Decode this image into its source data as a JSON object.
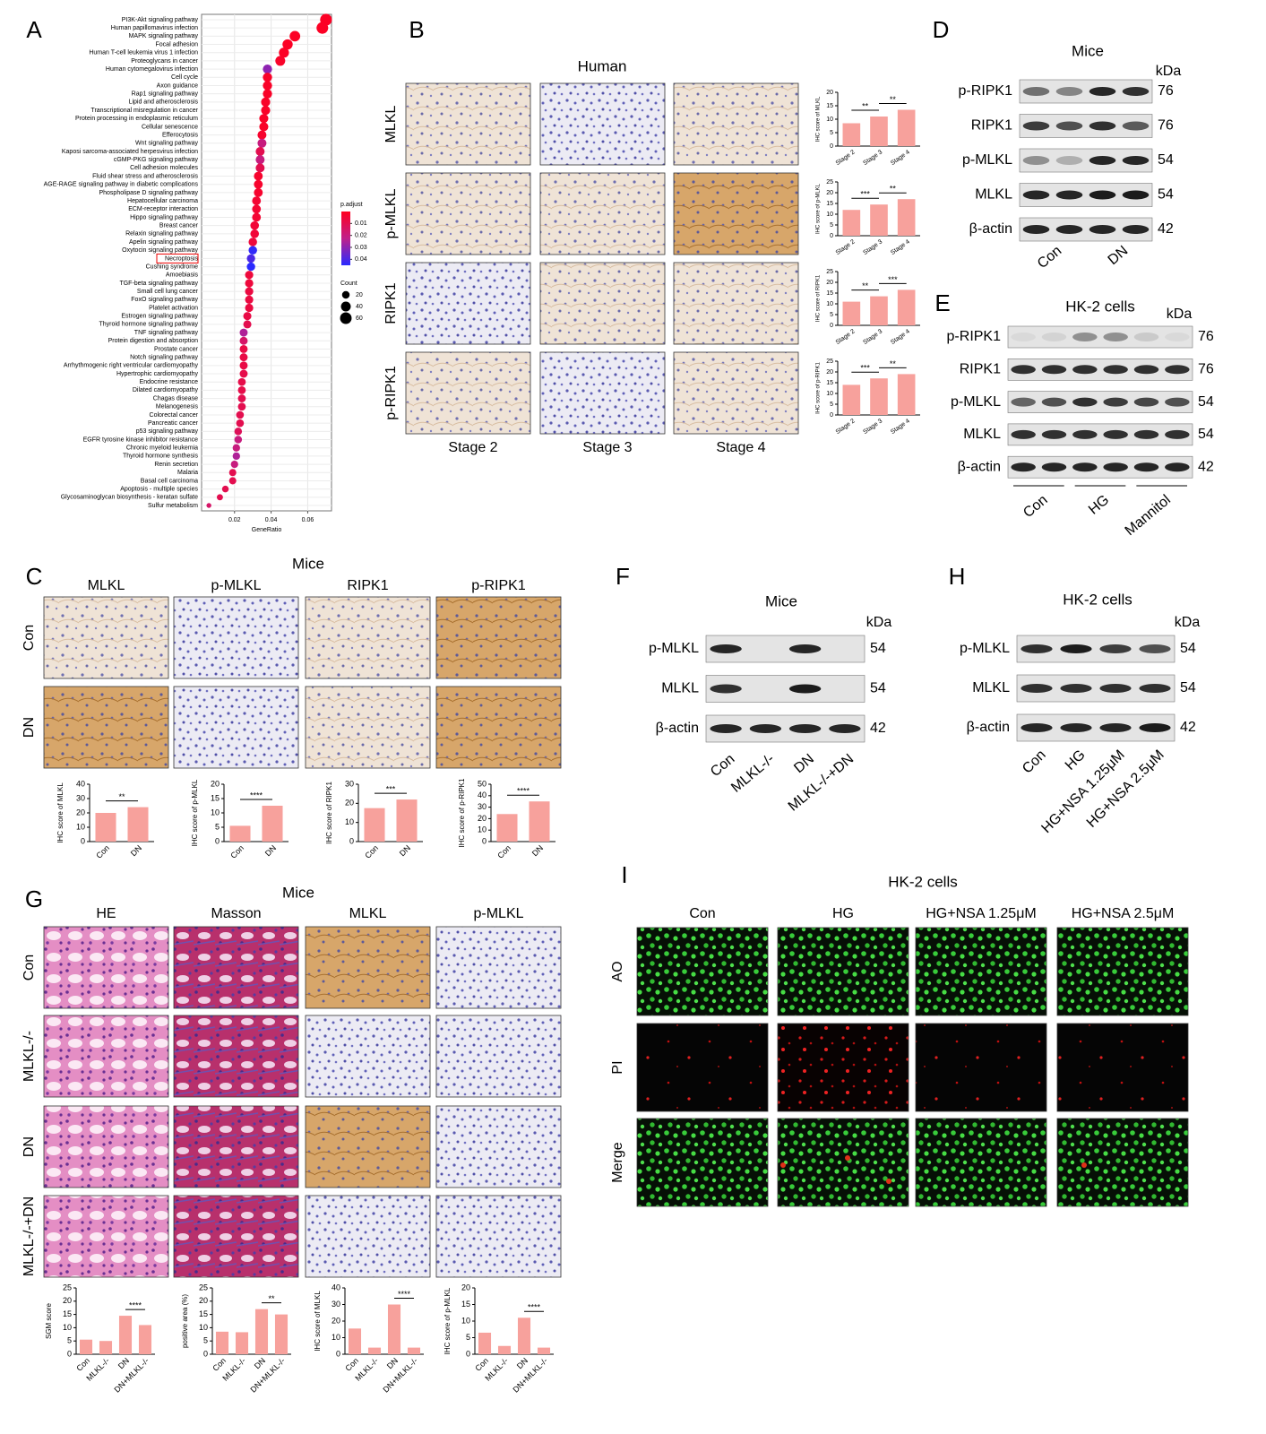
{
  "panel_labels": [
    "A",
    "B",
    "C",
    "D",
    "E",
    "F",
    "G",
    "H",
    "I"
  ],
  "chart_data": [
    {
      "type": "dot",
      "x_label": "GeneRatio",
      "categories": [
        "PI3K-Akt signaling pathway",
        "Human papillomavirus infection",
        "MAPK signaling pathway",
        "Focal adhesion",
        "Human T-cell leukemia virus 1 infection",
        "Proteoglycans in cancer",
        "Human cytomegalovirus infection",
        "Cell cycle",
        "Axon guidance",
        "Rap1 signaling pathway",
        "Lipid and atherosclerosis",
        "Transcriptional misregulation in cancer",
        "Protein processing in endoplasmic reticulum",
        "Cellular senescence",
        "Efferocytosis",
        "Wnt signaling pathway",
        "Kaposi sarcoma-associated herpesvirus infection",
        "cGMP-PKG signaling pathway",
        "Cell adhesion molecules",
        "Fluid shear stress and atherosclerosis",
        "AGE-RAGE signaling pathway in diabetic complications",
        "Phospholipase D signaling pathway",
        "Hepatocellular carcinoma",
        "ECM-receptor interaction",
        "Hippo signaling pathway",
        "Breast cancer",
        "Relaxin signaling pathway",
        "Apelin signaling pathway",
        "Oxytocin signaling pathway",
        "Necroptosis",
        "Cushing syndrome",
        "Amoebiasis",
        "TGF-beta signaling pathway",
        "Small cell lung cancer",
        "FoxO signaling pathway",
        "Platelet activation",
        "Estrogen signaling pathway",
        "Thyroid hormone signaling pathway",
        "TNF signaling pathway",
        "Protein digestion and absorption",
        "Prostate cancer",
        "Notch signaling pathway",
        "Arrhythmogenic right ventricular cardiomyopathy",
        "Hypertrophic cardiomyopathy",
        "Endocrine resistance",
        "Dilated cardiomyopathy",
        "Chagas disease",
        "Melanogenesis",
        "Colorectal cancer",
        "Pancreatic cancer",
        "p53 signaling pathway",
        "EGFR tyrosine kinase inhibitor resistance",
        "Chronic myeloid leukemia",
        "Thyroid hormone synthesis",
        "Renin secretion",
        "Malaria",
        "Basal cell carcinoma",
        "Apoptosis - multiple species",
        "Glycosaminoglycan biosynthesis - keratan sulfate",
        "Sulfur metabolism"
      ],
      "values": [
        0.07,
        0.068,
        0.053,
        0.049,
        0.047,
        0.045,
        0.038,
        0.038,
        0.038,
        0.038,
        0.037,
        0.037,
        0.036,
        0.036,
        0.035,
        0.035,
        0.034,
        0.034,
        0.034,
        0.033,
        0.033,
        0.033,
        0.032,
        0.032,
        0.032,
        0.031,
        0.031,
        0.03,
        0.03,
        0.029,
        0.029,
        0.028,
        0.028,
        0.028,
        0.028,
        0.028,
        0.027,
        0.027,
        0.025,
        0.025,
        0.025,
        0.025,
        0.025,
        0.025,
        0.024,
        0.024,
        0.024,
        0.024,
        0.023,
        0.023,
        0.022,
        0.022,
        0.021,
        0.021,
        0.02,
        0.019,
        0.019,
        0.015,
        0.012,
        0.006
      ],
      "counts": [
        63,
        61,
        48,
        44,
        42,
        40,
        34,
        34,
        34,
        34,
        33,
        33,
        32,
        32,
        31,
        31,
        31,
        31,
        31,
        30,
        30,
        30,
        29,
        29,
        29,
        28,
        28,
        27,
        27,
        26,
        26,
        25,
        25,
        25,
        25,
        25,
        24,
        24,
        23,
        23,
        23,
        23,
        23,
        23,
        22,
        22,
        22,
        22,
        21,
        21,
        20,
        20,
        19,
        19,
        18,
        17,
        17,
        14,
        11,
        5
      ],
      "p_adjust": [
        0.001,
        0.001,
        0.001,
        0.001,
        0.001,
        0.002,
        0.03,
        0.002,
        0.002,
        0.002,
        0.002,
        0.002,
        0.002,
        0.002,
        0.003,
        0.02,
        0.01,
        0.02,
        0.01,
        0.003,
        0.003,
        0.003,
        0.004,
        0.004,
        0.004,
        0.005,
        0.005,
        0.006,
        0.044,
        0.04,
        0.045,
        0.006,
        0.006,
        0.007,
        0.007,
        0.007,
        0.008,
        0.01,
        0.025,
        0.015,
        0.008,
        0.008,
        0.008,
        0.009,
        0.009,
        0.009,
        0.01,
        0.01,
        0.01,
        0.01,
        0.012,
        0.02,
        0.02,
        0.025,
        0.02,
        0.01,
        0.01,
        0.01,
        0.01,
        0.015
      ],
      "xlim": [
        0.002,
        0.073
      ],
      "xticks": [
        0.02,
        0.04,
        0.06
      ],
      "color_label": "p.adjust",
      "color_lim": [
        0,
        0.045
      ],
      "color_ticks": [
        0.01,
        0.02,
        0.03,
        0.04
      ],
      "size_label": "Count",
      "size_ticks": [
        20,
        40,
        60
      ],
      "highlight": 29,
      "grid": true
    },
    {
      "type": "bar",
      "y_label": "IHC score of MLKL",
      "categories": [
        "Stage 2",
        "Stage 3",
        "Stage 4"
      ],
      "values": [
        8.5,
        11,
        13.5
      ],
      "color": "#f7a19c",
      "ylim": [
        0,
        20
      ],
      "yticks": [
        0,
        5,
        10,
        15,
        20
      ],
      "significance": [
        {
          "pair": [
            0,
            1
          ],
          "label": "**"
        },
        {
          "pair": [
            1,
            2
          ],
          "label": "**"
        }
      ]
    },
    {
      "type": "bar",
      "y_label": "IHC score of p-MLKL",
      "categories": [
        "Stage 2",
        "Stage 3",
        "Stage 4"
      ],
      "values": [
        12,
        14.5,
        17
      ],
      "color": "#f7a19c",
      "ylim": [
        0,
        25
      ],
      "yticks": [
        0,
        5,
        10,
        15,
        20,
        25
      ],
      "significance": [
        {
          "pair": [
            0,
            1
          ],
          "label": "***"
        },
        {
          "pair": [
            1,
            2
          ],
          "label": "**"
        }
      ]
    },
    {
      "type": "bar",
      "y_label": "IHC score of RIPK1",
      "categories": [
        "Stage 2",
        "Stage 3",
        "Stage 4"
      ],
      "values": [
        11,
        13.5,
        16.5
      ],
      "color": "#f7a19c",
      "ylim": [
        0,
        25
      ],
      "yticks": [
        0,
        5,
        10,
        15,
        20,
        25
      ],
      "significance": [
        {
          "pair": [
            0,
            1
          ],
          "label": "**"
        },
        {
          "pair": [
            1,
            2
          ],
          "label": "***"
        }
      ]
    },
    {
      "type": "bar",
      "y_label": "IHC score of p-RIPK1",
      "categories": [
        "Stage 2",
        "Stage 3",
        "Stage 4"
      ],
      "values": [
        14,
        17,
        19
      ],
      "color": "#f7a19c",
      "ylim": [
        0,
        25
      ],
      "yticks": [
        0,
        5,
        10,
        15,
        20,
        25
      ],
      "significance": [
        {
          "pair": [
            0,
            1
          ],
          "label": "***"
        },
        {
          "pair": [
            1,
            2
          ],
          "label": "**"
        }
      ]
    },
    {
      "type": "bar",
      "y_label": "IHC score of MLKL",
      "categories": [
        "Con",
        "DN"
      ],
      "values": [
        20,
        24
      ],
      "color": "#f7a19c",
      "ylim": [
        0,
        40
      ],
      "yticks": [
        0,
        10,
        20,
        30,
        40
      ],
      "significance": [
        {
          "pair": [
            0,
            1
          ],
          "label": "**"
        }
      ]
    },
    {
      "type": "bar",
      "y_label": "IHC score of p-MLKL",
      "categories": [
        "Con",
        "DN"
      ],
      "values": [
        5.5,
        12.5
      ],
      "color": "#f7a19c",
      "ylim": [
        0,
        20
      ],
      "yticks": [
        0,
        5,
        10,
        15,
        20
      ],
      "significance": [
        {
          "pair": [
            0,
            1
          ],
          "label": "****"
        }
      ]
    },
    {
      "type": "bar",
      "y_label": "IHC score of RIPK1",
      "categories": [
        "Con",
        "DN"
      ],
      "values": [
        17.5,
        22
      ],
      "color": "#f7a19c",
      "ylim": [
        0,
        30
      ],
      "yticks": [
        0,
        10,
        20,
        30
      ],
      "significance": [
        {
          "pair": [
            0,
            1
          ],
          "label": "***"
        }
      ]
    },
    {
      "type": "bar",
      "y_label": "IHC score of p-RIPK1",
      "categories": [
        "Con",
        "DN"
      ],
      "values": [
        24,
        35
      ],
      "color": "#f7a19c",
      "ylim": [
        0,
        50
      ],
      "yticks": [
        0,
        10,
        20,
        30,
        40,
        50
      ],
      "significance": [
        {
          "pair": [
            0,
            1
          ],
          "label": "****"
        }
      ]
    },
    {
      "type": "bar",
      "y_label": "SGM score",
      "categories": [
        "Con",
        "MLKL-/-",
        "DN",
        "DN+MLKL-/-"
      ],
      "values": [
        5.5,
        5,
        14.5,
        11
      ],
      "color": "#f7a19c",
      "ylim": [
        0,
        25
      ],
      "yticks": [
        0,
        5,
        10,
        15,
        20,
        25
      ],
      "significance": [
        {
          "pair": [
            2,
            3
          ],
          "label": "****"
        }
      ]
    },
    {
      "type": "bar",
      "y_label": "positive area (%)",
      "categories": [
        "Con",
        "MLKL-/-",
        "DN",
        "DN+MLKL-/-"
      ],
      "values": [
        8.5,
        8.3,
        17,
        15
      ],
      "color": "#f7a19c",
      "ylim": [
        0,
        25
      ],
      "yticks": [
        0,
        5,
        10,
        15,
        20,
        25
      ],
      "significance": [
        {
          "pair": [
            2,
            3
          ],
          "label": "**"
        }
      ]
    },
    {
      "type": "bar",
      "y_label": "IHC score of MLKL",
      "categories": [
        "Con",
        "MLKL-/-",
        "DN",
        "DN+MLKL-/-"
      ],
      "values": [
        15.5,
        4,
        30,
        4
      ],
      "color": "#f7a19c",
      "ylim": [
        0,
        40
      ],
      "yticks": [
        0,
        10,
        20,
        30,
        40
      ],
      "significance": [
        {
          "pair": [
            2,
            3
          ],
          "label": "****"
        }
      ]
    },
    {
      "type": "bar",
      "y_label": "IHC score of p-MLKL",
      "categories": [
        "Con",
        "MLKL-/-",
        "DN",
        "DN+MLKL-/-"
      ],
      "values": [
        6.5,
        2.5,
        11,
        2
      ],
      "color": "#f7a19c",
      "ylim": [
        0,
        20
      ],
      "yticks": [
        0,
        5,
        10,
        15,
        20
      ],
      "significance": [
        {
          "pair": [
            2,
            3
          ],
          "label": "****"
        }
      ]
    }
  ],
  "panel_b": {
    "title": "Human",
    "rows": [
      "MLKL",
      "p-MLKL",
      "RIPK1",
      "p-RIPK1"
    ],
    "columns": [
      "Stage 2",
      "Stage 3",
      "Stage 4"
    ]
  },
  "panel_c": {
    "title": "Mice",
    "columns": [
      "MLKL",
      "p-MLKL",
      "RIPK1",
      "p-RIPK1"
    ],
    "rows": [
      "Con",
      "DN"
    ]
  },
  "panel_d": {
    "title": "Mice",
    "unit": "kDa",
    "proteins": [
      "p-RIPK1",
      "RIPK1",
      "p-MLKL",
      "MLKL",
      "β-actin"
    ],
    "kda": [
      76,
      76,
      54,
      54,
      42
    ],
    "lanes": [
      "Con",
      "DN"
    ]
  },
  "panel_e": {
    "title": "HK-2 cells",
    "unit": "kDa",
    "proteins": [
      "p-RIPK1",
      "RIPK1",
      "p-MLKL",
      "MLKL",
      "β-actin"
    ],
    "kda": [
      76,
      76,
      54,
      54,
      42
    ],
    "lanes": [
      "Con",
      "HG",
      "Mannitol"
    ]
  },
  "panel_f": {
    "title": "Mice",
    "unit": "kDa",
    "proteins": [
      "p-MLKL",
      "MLKL",
      "β-actin"
    ],
    "kda": [
      54,
      54,
      42
    ],
    "lanes": [
      "Con",
      "MLKL-/-",
      "DN",
      "MLKL-/-+DN"
    ]
  },
  "panel_g": {
    "title": "Mice",
    "columns": [
      "HE",
      "Masson",
      "MLKL",
      "p-MLKL"
    ],
    "rows": [
      "Con",
      "MLKL-/-",
      "DN",
      "MLKL-/-+DN"
    ]
  },
  "panel_h": {
    "title": "HK-2 cells",
    "unit": "kDa",
    "proteins": [
      "p-MLKL",
      "MLKL",
      "β-actin"
    ],
    "kda": [
      54,
      54,
      42
    ],
    "lanes": [
      "Con",
      "HG",
      "HG+NSA 1.25μM",
      "HG+NSA 2.5μM"
    ]
  },
  "panel_i": {
    "title": "HK-2 cells",
    "columns": [
      "Con",
      "HG",
      "HG+NSA 1.25μM",
      "HG+NSA 2.5μM"
    ],
    "rows": [
      "AO",
      "PI",
      "Merge"
    ]
  }
}
